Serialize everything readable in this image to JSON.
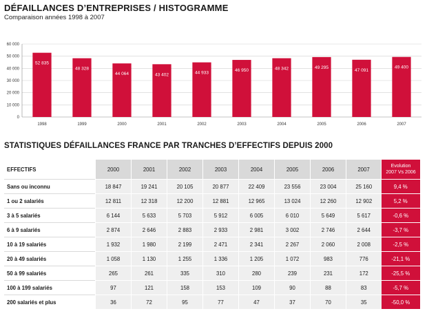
{
  "header": {
    "title": "DÉFAILLANCES D’ENTREPRISES / HISTOGRAMME",
    "subtitle": "Comparaison années 1998 à 2007"
  },
  "chart_data": {
    "type": "bar",
    "categories": [
      "1998",
      "1999",
      "2000",
      "2001",
      "2002",
      "2003",
      "2004",
      "2005",
      "2006",
      "2007"
    ],
    "values": [
      52835,
      48328,
      44064,
      43402,
      44933,
      46950,
      48342,
      49295,
      47091,
      49400
    ],
    "value_labels": [
      "52 835",
      "48 328",
      "44 064",
      "43 402",
      "44 933",
      "46 950",
      "48 342",
      "49 295",
      "47 091",
      "49 400"
    ],
    "ylim": [
      0,
      60000
    ],
    "yticks": [
      0,
      10000,
      20000,
      30000,
      40000,
      50000,
      60000
    ],
    "ytick_labels": [
      "0",
      "10 000",
      "20 000",
      "30 000",
      "40 000",
      "50 000",
      "60 000"
    ],
    "grid": true,
    "bar_color": "#d0103a"
  },
  "table": {
    "section_title": "STATISTIQUES DÉFAILLANCES FRANCE PAR TRANCHES D’EFFECTIFS DEPUIS 2000",
    "row_header_label": "EFFECTIFS",
    "years": [
      "2000",
      "2001",
      "2002",
      "2003",
      "2004",
      "2005",
      "2006",
      "2007"
    ],
    "evolution_header_1": "Evolution",
    "evolution_header_2": "2007 Vs 2006",
    "rows": [
      {
        "label": "Sans ou inconnu",
        "values": [
          "18 847",
          "19 241",
          "20 105",
          "20 877",
          "22 409",
          "23 556",
          "23 004",
          "25 160"
        ],
        "evolution": "9,4 %"
      },
      {
        "label": "1 ou 2 salariés",
        "values": [
          "12 811",
          "12 318",
          "12 200",
          "12 881",
          "12 965",
          "13 024",
          "12 260",
          "12 902"
        ],
        "evolution": "5,2 %"
      },
      {
        "label": "3 à 5 salariés",
        "values": [
          "6 144",
          "5 633",
          "5 703",
          "5 912",
          "6 005",
          "6 010",
          "5 649",
          "5 617"
        ],
        "evolution": "-0,6 %"
      },
      {
        "label": "6 à 9 salariés",
        "values": [
          "2 874",
          "2 646",
          "2 883",
          "2 933",
          "2 981",
          "3 002",
          "2 746",
          "2 644"
        ],
        "evolution": "-3,7 %"
      },
      {
        "label": "10 à 19 salariés",
        "values": [
          "1 932",
          "1 980",
          "2 199",
          "2 471",
          "2 341",
          "2 267",
          "2 060",
          "2 008"
        ],
        "evolution": "-2,5 %"
      },
      {
        "label": "20 à 49 salariés",
        "values": [
          "1 058",
          "1 130",
          "1 255",
          "1 336",
          "1 205",
          "1 072",
          "983",
          "776"
        ],
        "evolution": "-21,1 %"
      },
      {
        "label": "50 à 99 salariés",
        "values": [
          "265",
          "261",
          "335",
          "310",
          "280",
          "239",
          "231",
          "172"
        ],
        "evolution": "-25,5 %"
      },
      {
        "label": "100 à 199 salariés",
        "values": [
          "97",
          "121",
          "158",
          "153",
          "109",
          "90",
          "88",
          "83"
        ],
        "evolution": "-5,7 %"
      },
      {
        "label": "200 salariés et plus",
        "values": [
          "36",
          "72",
          "95",
          "77",
          "47",
          "37",
          "70",
          "35"
        ],
        "evolution": "-50,0 %"
      }
    ]
  }
}
